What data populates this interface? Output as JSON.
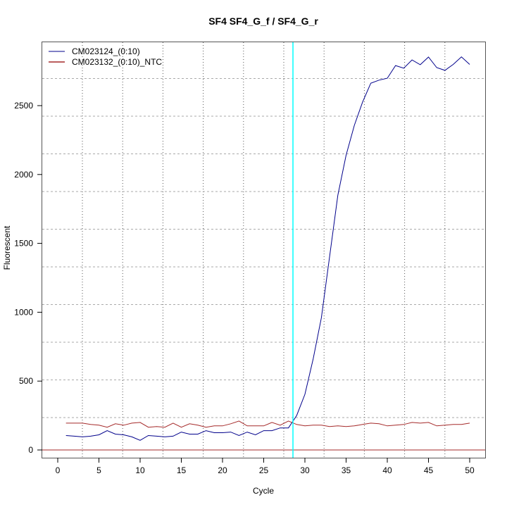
{
  "chart_data": {
    "type": "line",
    "title": "SF4  SF4_G_f / SF4_G_r",
    "xlabel": "Cycle",
    "ylabel": "Fluorescent",
    "xlim": [
      -1.5,
      52
    ],
    "ylim": [
      -55,
      2990
    ],
    "x_ticks": [
      0,
      5,
      10,
      15,
      20,
      25,
      30,
      35,
      40,
      45,
      50
    ],
    "y_ticks": [
      0,
      500,
      1000,
      1500,
      2000,
      2500
    ],
    "grid": true,
    "legend_position": "top-left",
    "threshold_cycle": 28.55,
    "baseline": 0,
    "colors": {
      "threshold": "#00ffff",
      "baseline": "#a52a2a"
    },
    "x": [
      1,
      2,
      3,
      4,
      5,
      6,
      7,
      8,
      9,
      10,
      11,
      12,
      13,
      14,
      15,
      16,
      17,
      18,
      19,
      20,
      21,
      22,
      23,
      24,
      25,
      26,
      27,
      28,
      29,
      30,
      31,
      32,
      33,
      34,
      35,
      36,
      37,
      38,
      39,
      40,
      41,
      42,
      43,
      44,
      45,
      46,
      47,
      48,
      49,
      50
    ],
    "series": [
      {
        "name": "CM023124_(0:10)",
        "color": "#00008b",
        "values": [
          105,
          100,
          95,
          100,
          110,
          140,
          115,
          110,
          95,
          70,
          105,
          100,
          95,
          100,
          130,
          115,
          115,
          140,
          125,
          125,
          130,
          105,
          130,
          110,
          140,
          140,
          160,
          160,
          250,
          404,
          660,
          960,
          1405,
          1850,
          2140,
          2357,
          2526,
          2663,
          2685,
          2699,
          2791,
          2772,
          2832,
          2797,
          2853,
          2776,
          2756,
          2799,
          2854,
          2799
        ]
      },
      {
        "name": "CM023132_(0:10)_NTC",
        "color": "#a52a2a",
        "values": [
          195,
          195,
          195,
          185,
          180,
          165,
          190,
          180,
          195,
          200,
          165,
          170,
          165,
          195,
          165,
          190,
          180,
          165,
          175,
          175,
          190,
          210,
          175,
          175,
          175,
          200,
          180,
          210,
          185,
          175,
          180,
          180,
          170,
          175,
          170,
          175,
          185,
          195,
          190,
          175,
          180,
          185,
          200,
          195,
          200,
          175,
          180,
          185,
          185,
          195
        ]
      }
    ]
  }
}
